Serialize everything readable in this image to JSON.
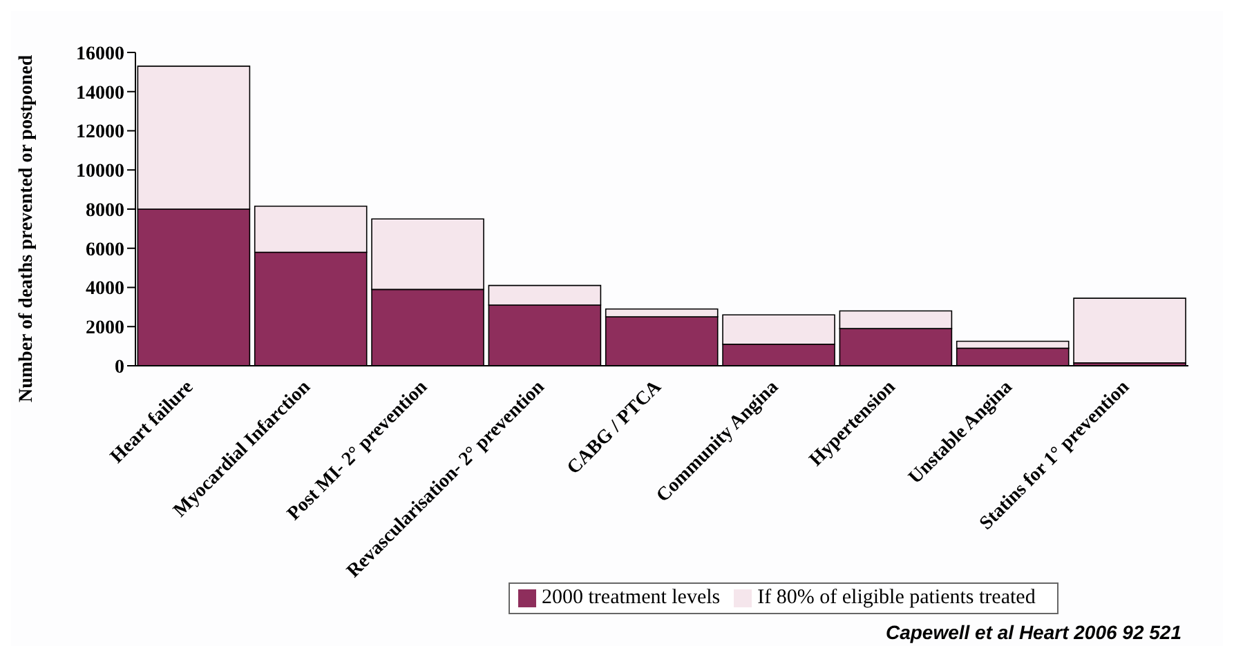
{
  "chart_data": {
    "type": "bar",
    "stacked": true,
    "ylabel": "Number of deaths prevented or postponed",
    "categories": [
      "Heart failure",
      "Myocardial Infarction",
      "Post MI- 2° prevention",
      "Revascularisation- 2° prevention",
      "CABG / PTCA",
      "Community Angina",
      "Hypertension",
      "Unstable Angina",
      "Statins for 1° prevention"
    ],
    "series": [
      {
        "name": "2000 treatment levels",
        "color": "#8e2e5c",
        "values": [
          8000,
          5800,
          3900,
          3100,
          2500,
          1100,
          1900,
          900,
          150
        ]
      },
      {
        "name": "If 80% of eligible patients treated",
        "color": "#f5e6ec",
        "values": [
          7300,
          2350,
          3600,
          1000,
          400,
          1500,
          900,
          350,
          3300
        ]
      }
    ],
    "ylim": [
      0,
      16000
    ],
    "yticks": [
      0,
      2000,
      4000,
      6000,
      8000,
      10000,
      12000,
      14000,
      16000
    ],
    "grid": false,
    "legend": "bottom right",
    "annotations": [
      "Capewell et al  Heart 2006 92 521"
    ]
  }
}
